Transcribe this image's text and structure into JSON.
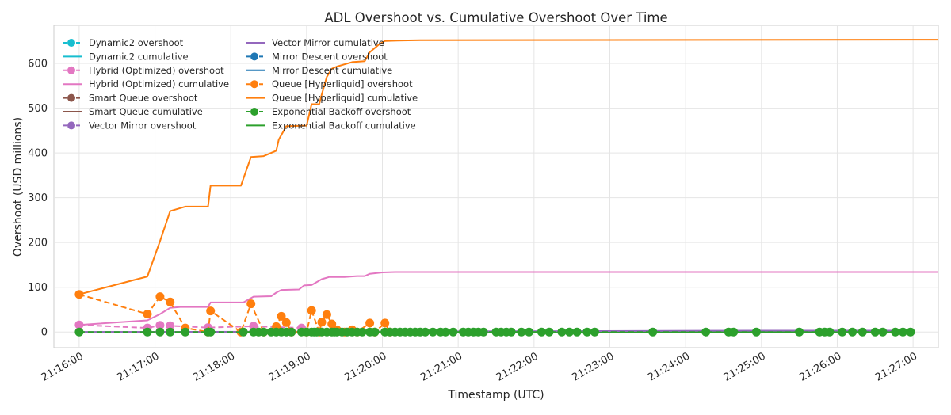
{
  "chart_data": {
    "type": "line",
    "title": "ADL Overshoot vs. Cumulative Overshoot Over Time",
    "xlabel": "Timestamp (UTC)",
    "ylabel": "Overshoot (USD millions)",
    "x_range_seconds": [
      76540,
      77240
    ],
    "ylim": [
      -35,
      685
    ],
    "grid": true,
    "x_ticks": [
      {
        "label": "21:16:00",
        "t": 76560
      },
      {
        "label": "21:17:00",
        "t": 76620
      },
      {
        "label": "21:18:00",
        "t": 76680
      },
      {
        "label": "21:19:00",
        "t": 76740
      },
      {
        "label": "21:20:00",
        "t": 76800
      },
      {
        "label": "21:21:00",
        "t": 76860
      },
      {
        "label": "21:22:00",
        "t": 76920
      },
      {
        "label": "21:23:00",
        "t": 76980
      },
      {
        "label": "21:24:00",
        "t": 77040
      },
      {
        "label": "21:25:00",
        "t": 77100
      },
      {
        "label": "21:26:00",
        "t": 77160
      },
      {
        "label": "21:27:00",
        "t": 77220
      }
    ],
    "y_ticks": [
      0,
      100,
      200,
      300,
      400,
      500,
      600
    ],
    "legend_placement": "top-left",
    "series": [
      {
        "name": "Dynamic2 overshoot",
        "color": "#17becf",
        "kind": "overshoot",
        "points": []
      },
      {
        "name": "Dynamic2 cumulative",
        "color": "#17becf",
        "kind": "cumulative",
        "points": []
      },
      {
        "name": "Hybrid (Optimized) overshoot",
        "color": "#e377c2",
        "kind": "overshoot",
        "points": [
          [
            76560,
            16
          ],
          [
            76614,
            9
          ],
          [
            76624,
            15
          ],
          [
            76632,
            14
          ],
          [
            76662,
            10
          ],
          [
            76698,
            13
          ],
          [
            76736,
            9
          ]
        ]
      },
      {
        "name": "Hybrid (Optimized) cumulative",
        "color": "#e377c2",
        "kind": "cumulative",
        "points": [
          [
            76560,
            16
          ],
          [
            76614,
            26
          ],
          [
            76624,
            40
          ],
          [
            76632,
            54
          ],
          [
            76640,
            56
          ],
          [
            76662,
            56
          ],
          [
            76664,
            66
          ],
          [
            76690,
            66
          ],
          [
            76698,
            79
          ],
          [
            76712,
            80
          ],
          [
            76716,
            88
          ],
          [
            76720,
            94
          ],
          [
            76734,
            95
          ],
          [
            76738,
            104
          ],
          [
            76744,
            105
          ],
          [
            76752,
            118
          ],
          [
            76758,
            123
          ],
          [
            76770,
            123
          ],
          [
            76780,
            125
          ],
          [
            76786,
            125
          ],
          [
            76790,
            130
          ],
          [
            76800,
            133
          ],
          [
            76810,
            134
          ],
          [
            77240,
            134
          ]
        ]
      },
      {
        "name": "Smart Queue overshoot",
        "color": "#8c564b",
        "kind": "overshoot",
        "points": []
      },
      {
        "name": "Smart Queue cumulative",
        "color": "#8c564b",
        "kind": "cumulative",
        "points": []
      },
      {
        "name": "Vector Mirror overshoot",
        "color": "#9467bd",
        "kind": "overshoot",
        "points": []
      },
      {
        "name": "Vector Mirror cumulative",
        "color": "#9467bd",
        "kind": "cumulative",
        "points": [
          [
            76560,
            0
          ],
          [
            76800,
            1
          ],
          [
            76950,
            2
          ],
          [
            77100,
            3
          ],
          [
            77220,
            3
          ]
        ]
      },
      {
        "name": "Mirror Descent overshoot",
        "color": "#1f77b4",
        "kind": "overshoot",
        "points": []
      },
      {
        "name": "Mirror Descent cumulative",
        "color": "#1f77b4",
        "kind": "cumulative",
        "points": []
      },
      {
        "name": "Queue [Hyperliquid] overshoot",
        "color": "#ff7f0e",
        "kind": "overshoot",
        "points": [
          [
            76560,
            84
          ],
          [
            76614,
            40
          ],
          [
            76624,
            79
          ],
          [
            76632,
            67
          ],
          [
            76644,
            9
          ],
          [
            76662,
            0
          ],
          [
            76664,
            47
          ],
          [
            76688,
            0
          ],
          [
            76696,
            63
          ],
          [
            76706,
            0
          ],
          [
            76716,
            12
          ],
          [
            76720,
            35
          ],
          [
            76724,
            21
          ],
          [
            76728,
            0
          ],
          [
            76740,
            0
          ],
          [
            76744,
            48
          ],
          [
            76750,
            0
          ],
          [
            76752,
            22
          ],
          [
            76756,
            39
          ],
          [
            76760,
            18
          ],
          [
            76764,
            5
          ],
          [
            76770,
            0
          ],
          [
            76776,
            5
          ],
          [
            76780,
            0
          ],
          [
            76790,
            20
          ],
          [
            76794,
            0
          ],
          [
            76802,
            20
          ],
          [
            76806,
            0
          ]
        ]
      },
      {
        "name": "Queue [Hyperliquid] cumulative",
        "color": "#ff7f0e",
        "kind": "cumulative",
        "points": [
          [
            76560,
            84
          ],
          [
            76614,
            124
          ],
          [
            76624,
            203
          ],
          [
            76632,
            270
          ],
          [
            76644,
            280
          ],
          [
            76662,
            280
          ],
          [
            76664,
            327
          ],
          [
            76688,
            327
          ],
          [
            76696,
            391
          ],
          [
            76706,
            393
          ],
          [
            76716,
            405
          ],
          [
            76718,
            430
          ],
          [
            76720,
            440
          ],
          [
            76724,
            460
          ],
          [
            76740,
            461
          ],
          [
            76744,
            509
          ],
          [
            76750,
            509
          ],
          [
            76752,
            531
          ],
          [
            76756,
            570
          ],
          [
            76760,
            588
          ],
          [
            76764,
            593
          ],
          [
            76770,
            598
          ],
          [
            76776,
            603
          ],
          [
            76786,
            605
          ],
          [
            76790,
            625
          ],
          [
            76798,
            644
          ],
          [
            76802,
            650
          ],
          [
            76812,
            651
          ],
          [
            76830,
            652
          ],
          [
            77240,
            653
          ]
        ]
      },
      {
        "name": "Exponential Backoff overshoot",
        "color": "#2ca02c",
        "kind": "overshoot",
        "points": [
          [
            76560,
            0
          ],
          [
            76614,
            0
          ],
          [
            76624,
            0
          ],
          [
            76632,
            0
          ],
          [
            76644,
            0
          ],
          [
            76662,
            0
          ],
          [
            76664,
            0
          ],
          [
            76690,
            0
          ],
          [
            76698,
            0
          ],
          [
            76702,
            0
          ],
          [
            76706,
            0
          ],
          [
            76712,
            0
          ],
          [
            76716,
            0
          ],
          [
            76720,
            0
          ],
          [
            76724,
            0
          ],
          [
            76728,
            0
          ],
          [
            76736,
            0
          ],
          [
            76740,
            0
          ],
          [
            76744,
            0
          ],
          [
            76746,
            0
          ],
          [
            76748,
            0
          ],
          [
            76752,
            0
          ],
          [
            76756,
            0
          ],
          [
            76760,
            0
          ],
          [
            76762,
            0
          ],
          [
            76764,
            0
          ],
          [
            76768,
            0
          ],
          [
            76772,
            0
          ],
          [
            76776,
            0
          ],
          [
            76780,
            0
          ],
          [
            76784,
            0
          ],
          [
            76790,
            0
          ],
          [
            76794,
            0
          ],
          [
            76802,
            0
          ],
          [
            76806,
            0
          ],
          [
            76810,
            0
          ],
          [
            76814,
            0
          ],
          [
            76818,
            0
          ],
          [
            76822,
            0
          ],
          [
            76826,
            0
          ],
          [
            76830,
            0
          ],
          [
            76834,
            0
          ],
          [
            76840,
            0
          ],
          [
            76846,
            0
          ],
          [
            76850,
            0
          ],
          [
            76856,
            0
          ],
          [
            76864,
            0
          ],
          [
            76868,
            0
          ],
          [
            76872,
            0
          ],
          [
            76876,
            0
          ],
          [
            76880,
            0
          ],
          [
            76890,
            0
          ],
          [
            76894,
            0
          ],
          [
            76898,
            0
          ],
          [
            76902,
            0
          ],
          [
            76910,
            0
          ],
          [
            76916,
            0
          ],
          [
            76926,
            0
          ],
          [
            76932,
            0
          ],
          [
            76942,
            0
          ],
          [
            76948,
            0
          ],
          [
            76954,
            0
          ],
          [
            76962,
            0
          ],
          [
            76968,
            0
          ],
          [
            77014,
            0
          ],
          [
            77056,
            0
          ],
          [
            77074,
            0
          ],
          [
            77078,
            0
          ],
          [
            77096,
            0
          ],
          [
            77130,
            0
          ],
          [
            77146,
            0
          ],
          [
            77150,
            0
          ],
          [
            77154,
            0
          ],
          [
            77164,
            0
          ],
          [
            77172,
            0
          ],
          [
            77180,
            0
          ],
          [
            77190,
            0
          ],
          [
            77196,
            0
          ],
          [
            77206,
            0
          ],
          [
            77212,
            0
          ],
          [
            77218,
            0
          ]
        ]
      },
      {
        "name": "Exponential Backoff cumulative",
        "color": "#2ca02c",
        "kind": "cumulative",
        "points": [
          [
            76560,
            0
          ],
          [
            77218,
            0
          ]
        ]
      }
    ]
  }
}
